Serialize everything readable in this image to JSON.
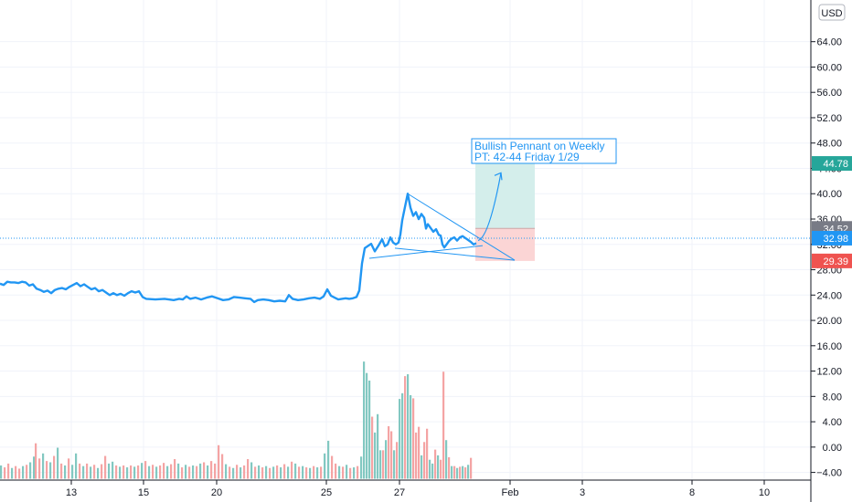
{
  "chart_data": {
    "type": "line",
    "currency": "USD",
    "y_ticks": [
      "64.00",
      "60.00",
      "56.00",
      "52.00",
      "48.00",
      "44.00",
      "40.00",
      "36.00",
      "32.00",
      "28.00",
      "24.00",
      "20.00",
      "16.00",
      "12.00",
      "8.00",
      "4.00",
      "0.00",
      "−4.00"
    ],
    "x_ticks": [
      "13",
      "15",
      "20",
      "25",
      "27",
      "Feb",
      "3",
      "8",
      "10"
    ],
    "ylim": [
      -6,
      68
    ],
    "price_series": [
      [
        0,
        25.8
      ],
      [
        4,
        25.6
      ],
      [
        8,
        26.1
      ],
      [
        12,
        26.0
      ],
      [
        16,
        26.0
      ],
      [
        20,
        25.9
      ],
      [
        24,
        26.1
      ],
      [
        28,
        26.0
      ],
      [
        32,
        25.5
      ],
      [
        36,
        25.7
      ],
      [
        40,
        25.0
      ],
      [
        44,
        24.8
      ],
      [
        48,
        24.5
      ],
      [
        52,
        24.7
      ],
      [
        56,
        24.3
      ],
      [
        60,
        24.8
      ],
      [
        64,
        25.0
      ],
      [
        68,
        25.1
      ],
      [
        72,
        24.9
      ],
      [
        76,
        25.3
      ],
      [
        80,
        25.6
      ],
      [
        84,
        25.9
      ],
      [
        88,
        25.4
      ],
      [
        92,
        25.7
      ],
      [
        96,
        25.3
      ],
      [
        100,
        24.9
      ],
      [
        104,
        25.1
      ],
      [
        108,
        24.6
      ],
      [
        112,
        24.8
      ],
      [
        116,
        24.4
      ],
      [
        120,
        24.0
      ],
      [
        124,
        24.3
      ],
      [
        128,
        24.0
      ],
      [
        132,
        24.2
      ],
      [
        136,
        23.9
      ],
      [
        140,
        24.3
      ],
      [
        144,
        24.6
      ],
      [
        148,
        24.4
      ],
      [
        152,
        24.6
      ],
      [
        156,
        23.7
      ],
      [
        160,
        23.4
      ],
      [
        170,
        23.3
      ],
      [
        180,
        23.4
      ],
      [
        190,
        23.2
      ],
      [
        196,
        23.4
      ],
      [
        200,
        23.3
      ],
      [
        204,
        23.8
      ],
      [
        208,
        23.4
      ],
      [
        214,
        23.6
      ],
      [
        220,
        23.3
      ],
      [
        226,
        23.6
      ],
      [
        232,
        23.8
      ],
      [
        238,
        23.5
      ],
      [
        244,
        23.2
      ],
      [
        250,
        23.3
      ],
      [
        256,
        23.7
      ],
      [
        262,
        23.6
      ],
      [
        268,
        23.5
      ],
      [
        274,
        23.4
      ],
      [
        278,
        22.9
      ],
      [
        282,
        23.2
      ],
      [
        288,
        23.3
      ],
      [
        294,
        23.2
      ],
      [
        300,
        23.0
      ],
      [
        306,
        23.1
      ],
      [
        312,
        23.0
      ],
      [
        316,
        24.0
      ],
      [
        320,
        23.4
      ],
      [
        326,
        23.2
      ],
      [
        332,
        23.3
      ],
      [
        338,
        23.5
      ],
      [
        344,
        23.6
      ],
      [
        350,
        23.4
      ],
      [
        354,
        23.8
      ],
      [
        358,
        24.9
      ],
      [
        362,
        23.9
      ],
      [
        366,
        23.6
      ],
      [
        370,
        23.3
      ],
      [
        374,
        23.4
      ],
      [
        378,
        23.5
      ],
      [
        382,
        23.4
      ],
      [
        386,
        23.5
      ],
      [
        390,
        23.7
      ],
      [
        393,
        24.7
      ],
      [
        396,
        29.0
      ],
      [
        399,
        31.4
      ],
      [
        402,
        31.7
      ],
      [
        406,
        32.1
      ],
      [
        410,
        30.9
      ],
      [
        414,
        31.8
      ],
      [
        418,
        32.8
      ],
      [
        421,
        31.7
      ],
      [
        424,
        32.0
      ],
      [
        427,
        33.1
      ],
      [
        430,
        32.3
      ],
      [
        433,
        32.0
      ],
      [
        436,
        32.3
      ],
      [
        438,
        33.6
      ],
      [
        440,
        35.8
      ],
      [
        443,
        37.9
      ],
      [
        446,
        40.0
      ],
      [
        449,
        37.8
      ],
      [
        452,
        36.5
      ],
      [
        455,
        37.1
      ],
      [
        458,
        36.0
      ],
      [
        461,
        36.8
      ],
      [
        464,
        36.2
      ],
      [
        466,
        34.5
      ],
      [
        468,
        35.2
      ],
      [
        471,
        34.6
      ],
      [
        474,
        34.0
      ],
      [
        477,
        34.4
      ],
      [
        480,
        33.5
      ],
      [
        482,
        33.4
      ],
      [
        484,
        32.0
      ],
      [
        486,
        31.5
      ],
      [
        488,
        31.9
      ],
      [
        491,
        32.5
      ],
      [
        494,
        32.9
      ],
      [
        497,
        33.1
      ],
      [
        500,
        32.6
      ],
      [
        503,
        33.1
      ],
      [
        506,
        33.3
      ],
      [
        509,
        33.0
      ],
      [
        512,
        32.7
      ],
      [
        515,
        32.4
      ],
      [
        518,
        32.0
      ],
      [
        521,
        32.2
      ]
    ],
    "volume_series": [
      {
        "x": 0,
        "v": -2.9,
        "up": true
      },
      {
        "x": 4,
        "v": -3.2,
        "up": false
      },
      {
        "x": 8,
        "v": -2.6,
        "up": false
      },
      {
        "x": 12,
        "v": -3.3,
        "up": true
      },
      {
        "x": 16,
        "v": -3.0,
        "up": false
      },
      {
        "x": 20,
        "v": -3.4,
        "up": false
      },
      {
        "x": 24,
        "v": -3.0,
        "up": true
      },
      {
        "x": 28,
        "v": -2.8,
        "up": false
      },
      {
        "x": 32,
        "v": -2.4,
        "up": true
      },
      {
        "x": 36,
        "v": -1.5,
        "up": true
      },
      {
        "x": 38,
        "v": 0.6,
        "up": false
      },
      {
        "x": 42,
        "v": -1.8,
        "up": false
      },
      {
        "x": 46,
        "v": -1.0,
        "up": true
      },
      {
        "x": 50,
        "v": -2.2,
        "up": false
      },
      {
        "x": 54,
        "v": -2.4,
        "up": true
      },
      {
        "x": 58,
        "v": -1.4,
        "up": false
      },
      {
        "x": 62,
        "v": -0.1,
        "up": true
      },
      {
        "x": 66,
        "v": -2.6,
        "up": false
      },
      {
        "x": 70,
        "v": -2.9,
        "up": true
      },
      {
        "x": 74,
        "v": -1.8,
        "up": false
      },
      {
        "x": 78,
        "v": -2.8,
        "up": true
      },
      {
        "x": 82,
        "v": -1.0,
        "up": true
      },
      {
        "x": 86,
        "v": -2.6,
        "up": false
      },
      {
        "x": 90,
        "v": -3.0,
        "up": true
      },
      {
        "x": 94,
        "v": -2.6,
        "up": false
      },
      {
        "x": 98,
        "v": -3.1,
        "up": true
      },
      {
        "x": 102,
        "v": -2.8,
        "up": false
      },
      {
        "x": 106,
        "v": -3.3,
        "up": true
      },
      {
        "x": 110,
        "v": -2.7,
        "up": false
      },
      {
        "x": 114,
        "v": -1.4,
        "up": false
      },
      {
        "x": 118,
        "v": -2.6,
        "up": true
      },
      {
        "x": 122,
        "v": -2.3,
        "up": true
      },
      {
        "x": 126,
        "v": -2.9,
        "up": false
      },
      {
        "x": 130,
        "v": -3.1,
        "up": true
      },
      {
        "x": 134,
        "v": -2.9,
        "up": false
      },
      {
        "x": 138,
        "v": -3.2,
        "up": true
      },
      {
        "x": 142,
        "v": -2.9,
        "up": false
      },
      {
        "x": 146,
        "v": -3.1,
        "up": true
      },
      {
        "x": 150,
        "v": -2.9,
        "up": false
      },
      {
        "x": 154,
        "v": -2.5,
        "up": true
      },
      {
        "x": 158,
        "v": -2.2,
        "up": false
      },
      {
        "x": 162,
        "v": -3.0,
        "up": true
      },
      {
        "x": 166,
        "v": -2.8,
        "up": false
      },
      {
        "x": 170,
        "v": -3.1,
        "up": true
      },
      {
        "x": 174,
        "v": -2.9,
        "up": false
      },
      {
        "x": 178,
        "v": -2.5,
        "up": false
      },
      {
        "x": 182,
        "v": -3.0,
        "up": true
      },
      {
        "x": 186,
        "v": -2.7,
        "up": false
      },
      {
        "x": 190,
        "v": -1.9,
        "up": false
      },
      {
        "x": 194,
        "v": -2.6,
        "up": true
      },
      {
        "x": 198,
        "v": -3.2,
        "up": false
      },
      {
        "x": 202,
        "v": -2.8,
        "up": true
      },
      {
        "x": 206,
        "v": -3.1,
        "up": false
      },
      {
        "x": 210,
        "v": -2.9,
        "up": true
      },
      {
        "x": 214,
        "v": -3.0,
        "up": false
      },
      {
        "x": 218,
        "v": -2.6,
        "up": true
      },
      {
        "x": 222,
        "v": -2.4,
        "up": false
      },
      {
        "x": 226,
        "v": -2.9,
        "up": true
      },
      {
        "x": 230,
        "v": -2.2,
        "up": false
      },
      {
        "x": 234,
        "v": -2.6,
        "up": false
      },
      {
        "x": 238,
        "v": 0.3,
        "up": false
      },
      {
        "x": 242,
        "v": -1.1,
        "up": false
      },
      {
        "x": 246,
        "v": -2.7,
        "up": true
      },
      {
        "x": 250,
        "v": -3.1,
        "up": false
      },
      {
        "x": 254,
        "v": -3.3,
        "up": true
      },
      {
        "x": 258,
        "v": -2.8,
        "up": false
      },
      {
        "x": 262,
        "v": -3.2,
        "up": true
      },
      {
        "x": 266,
        "v": -2.9,
        "up": false
      },
      {
        "x": 270,
        "v": -1.9,
        "up": false
      },
      {
        "x": 274,
        "v": -2.4,
        "up": true
      },
      {
        "x": 278,
        "v": -3.1,
        "up": false
      },
      {
        "x": 282,
        "v": -2.9,
        "up": true
      },
      {
        "x": 286,
        "v": -3.2,
        "up": false
      },
      {
        "x": 290,
        "v": -3.0,
        "up": true
      },
      {
        "x": 294,
        "v": -3.3,
        "up": false
      },
      {
        "x": 298,
        "v": -3.1,
        "up": true
      },
      {
        "x": 302,
        "v": -2.9,
        "up": false
      },
      {
        "x": 306,
        "v": -3.2,
        "up": true
      },
      {
        "x": 310,
        "v": -2.7,
        "up": false
      },
      {
        "x": 314,
        "v": -3.1,
        "up": true
      },
      {
        "x": 318,
        "v": -2.3,
        "up": false
      },
      {
        "x": 322,
        "v": -2.6,
        "up": true
      },
      {
        "x": 326,
        "v": -3.1,
        "up": false
      },
      {
        "x": 330,
        "v": -3.0,
        "up": true
      },
      {
        "x": 334,
        "v": -3.2,
        "up": false
      },
      {
        "x": 338,
        "v": -3.3,
        "up": true
      },
      {
        "x": 342,
        "v": -3.0,
        "up": false
      },
      {
        "x": 346,
        "v": -3.2,
        "up": true
      },
      {
        "x": 350,
        "v": -3.1,
        "up": false
      },
      {
        "x": 354,
        "v": -1.0,
        "up": true
      },
      {
        "x": 358,
        "v": 1.0,
        "up": true
      },
      {
        "x": 362,
        "v": -1.4,
        "up": false
      },
      {
        "x": 366,
        "v": -2.6,
        "up": false
      },
      {
        "x": 370,
        "v": -3.0,
        "up": true
      },
      {
        "x": 374,
        "v": -3.1,
        "up": false
      },
      {
        "x": 378,
        "v": -2.8,
        "up": true
      },
      {
        "x": 382,
        "v": -3.3,
        "up": false
      },
      {
        "x": 386,
        "v": -3.2,
        "up": true
      },
      {
        "x": 390,
        "v": -3.0,
        "up": false
      },
      {
        "x": 394,
        "v": -1.5,
        "up": true
      },
      {
        "x": 397,
        "v": 13.5,
        "up": true
      },
      {
        "x": 400,
        "v": 11.7,
        "up": true
      },
      {
        "x": 403,
        "v": 10.5,
        "up": true
      },
      {
        "x": 406,
        "v": 4.8,
        "up": false
      },
      {
        "x": 409,
        "v": 2.3,
        "up": true
      },
      {
        "x": 412,
        "v": 5.2,
        "up": true
      },
      {
        "x": 415,
        "v": -0.5,
        "up": true
      },
      {
        "x": 418,
        "v": -0.5,
        "up": false
      },
      {
        "x": 421,
        "v": 1.1,
        "up": true
      },
      {
        "x": 424,
        "v": 3.3,
        "up": false
      },
      {
        "x": 427,
        "v": 2.5,
        "up": false
      },
      {
        "x": 430,
        "v": -0.5,
        "up": true
      },
      {
        "x": 433,
        "v": 0.8,
        "up": false
      },
      {
        "x": 436,
        "v": 7.6,
        "up": true
      },
      {
        "x": 439,
        "v": 8.5,
        "up": true
      },
      {
        "x": 442,
        "v": 11.2,
        "up": false
      },
      {
        "x": 445,
        "v": 11.5,
        "up": true
      },
      {
        "x": 448,
        "v": 8.2,
        "up": true
      },
      {
        "x": 451,
        "v": 7.7,
        "up": false
      },
      {
        "x": 454,
        "v": 2.3,
        "up": false
      },
      {
        "x": 457,
        "v": 3.2,
        "up": false
      },
      {
        "x": 460,
        "v": -1.3,
        "up": true
      },
      {
        "x": 463,
        "v": 0.8,
        "up": false
      },
      {
        "x": 466,
        "v": 2.9,
        "up": false
      },
      {
        "x": 469,
        "v": -2.0,
        "up": true
      },
      {
        "x": 472,
        "v": -2.6,
        "up": true
      },
      {
        "x": 475,
        "v": -0.4,
        "up": false
      },
      {
        "x": 478,
        "v": -1.3,
        "up": true
      },
      {
        "x": 481,
        "v": -2.0,
        "up": false
      },
      {
        "x": 484,
        "v": 11.9,
        "up": false
      },
      {
        "x": 487,
        "v": 1.1,
        "up": true
      },
      {
        "x": 490,
        "v": -1.6,
        "up": false
      },
      {
        "x": 493,
        "v": -3.0,
        "up": true
      },
      {
        "x": 496,
        "v": -3.0,
        "up": false
      },
      {
        "x": 499,
        "v": -3.3,
        "up": true
      },
      {
        "x": 502,
        "v": -3.1,
        "up": false
      },
      {
        "x": 505,
        "v": -3.0,
        "up": true
      },
      {
        "x": 508,
        "v": -3.2,
        "up": false
      },
      {
        "x": 511,
        "v": -2.8,
        "up": true
      },
      {
        "x": 514,
        "v": -1.7,
        "up": false
      }
    ],
    "annotation": {
      "line1": "Bullish Pennant on Weekly",
      "line2": "PT: 42-44 Friday 1/29"
    },
    "price_tags": {
      "target": "44.78",
      "entry": "34.52",
      "last": "32.98",
      "stop": "29.39"
    },
    "trade_levels": {
      "target": 44.78,
      "entry": 34.52,
      "stop": 29.39,
      "last": 32.98
    },
    "pennant_lines": [
      {
        "from": [
          446,
          40.0
        ],
        "to": [
          563,
          29.5
        ]
      },
      {
        "from": [
          404,
          29.8
        ],
        "to": [
          528,
          31.8
        ]
      },
      {
        "from": [
          432,
          31.4
        ],
        "to": [
          563,
          29.5
        ]
      }
    ],
    "projection": {
      "from": [
        523,
        32.6
      ],
      "to": [
        548,
        43.3
      ]
    },
    "colors": {
      "line": "#2196f3",
      "up_volume": "#82c8c1",
      "down_volume": "#f4a4a4",
      "target_tag": "#26a69a",
      "entry_tag": "#787b86",
      "last_tag": "#2196f3",
      "stop_tag": "#ef5350",
      "profit_zone": "#d4eeeb",
      "loss_zone": "#fbd5d5",
      "grid": "#f0f3fa",
      "axis_text": "#131722"
    }
  }
}
